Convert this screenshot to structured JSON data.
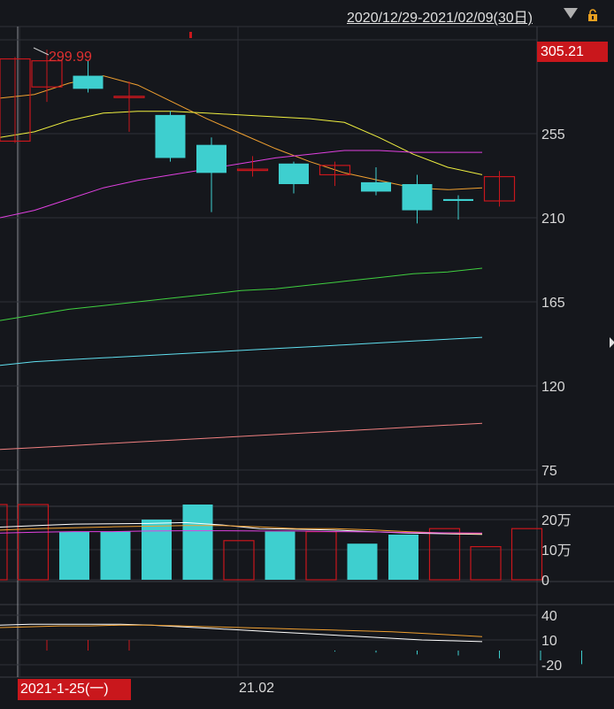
{
  "header": {
    "range": "2020/12/29-2021/02/09(30日)"
  },
  "icons": {
    "dropdown": "triangle-down-icon",
    "lock": "lock-icon",
    "expand": "triangle-right-icon"
  },
  "colors": {
    "up": "#c9171c",
    "down": "#3ecfcf",
    "grid": "#2e3138",
    "bg": "#15171c"
  },
  "chart_data": [
    {
      "type": "candlestick",
      "ylim": [
        65,
        320
      ],
      "y_ticks": [
        255,
        210,
        165,
        120,
        75
      ],
      "y_tick_labels": [
        "255",
        "210",
        "165",
        "120",
        "75"
      ],
      "last_price": "305.21",
      "max_label": "299.99",
      "x_tick_label": "21.02",
      "crosshair_date": "2021-1-25(一)",
      "candles": [
        {
          "open": 251,
          "close": 295,
          "high": 296,
          "low": 250,
          "dir": "up"
        },
        {
          "open": 280,
          "close": 294,
          "high": 300,
          "low": 272,
          "dir": "up"
        },
        {
          "open": 286,
          "close": 279,
          "high": 294,
          "low": 277,
          "dir": "down"
        },
        {
          "open": 275,
          "close": 275,
          "high": 283,
          "low": 256,
          "dir": "up"
        },
        {
          "open": 265,
          "close": 242,
          "high": 267,
          "low": 240,
          "dir": "down"
        },
        {
          "open": 249,
          "close": 234,
          "high": 253,
          "low": 213,
          "dir": "down"
        },
        {
          "open": 236,
          "close": 236,
          "high": 243,
          "low": 232,
          "dir": "up"
        },
        {
          "open": 239,
          "close": 228,
          "high": 240,
          "low": 223,
          "dir": "down"
        },
        {
          "open": 233,
          "close": 238,
          "high": 240,
          "low": 227,
          "dir": "up"
        },
        {
          "open": 229,
          "close": 224,
          "high": 237,
          "low": 222,
          "dir": "down"
        },
        {
          "open": 228,
          "close": 214,
          "high": 233,
          "low": 207,
          "dir": "down"
        },
        {
          "open": 220,
          "close": 219,
          "high": 222,
          "low": 209,
          "dir": "down"
        },
        {
          "open": 219,
          "close": 232,
          "high": 235,
          "low": 216,
          "dir": "up"
        }
      ],
      "ma": [
        {
          "color": "#f0a030",
          "values": [
            274,
            276,
            282,
            286,
            281,
            272,
            263,
            255,
            247,
            240,
            234,
            230,
            226,
            225,
            226
          ]
        },
        {
          "color": "#f0f040",
          "values": [
            253,
            256,
            262,
            266,
            267,
            267,
            266,
            265,
            264,
            263,
            261,
            253,
            244,
            237,
            233
          ]
        },
        {
          "color": "#e040e0",
          "values": [
            210,
            214,
            220,
            226,
            230,
            233,
            236,
            239,
            242,
            244,
            246,
            246,
            245,
            245,
            245
          ]
        },
        {
          "color": "#40d040",
          "values": [
            155,
            158,
            161,
            163,
            165,
            167,
            169,
            171,
            172,
            174,
            176,
            178,
            180,
            181,
            183
          ]
        },
        {
          "color": "#60e0f0",
          "values": [
            131,
            133,
            134,
            135,
            136,
            137,
            138,
            139,
            140,
            141,
            142,
            143,
            144,
            145,
            146
          ]
        },
        {
          "color": "#f08080",
          "values": [
            86,
            87,
            88,
            89,
            90,
            91,
            92,
            93,
            94,
            95,
            96,
            97,
            98,
            99,
            100
          ]
        }
      ]
    },
    {
      "type": "bar",
      "ylim": [
        0,
        23
      ],
      "y_ticks": [
        20,
        10,
        0
      ],
      "y_tick_labels": [
        "20万",
        "10万",
        "0"
      ],
      "values": [
        25,
        25,
        16,
        16,
        20,
        25,
        13,
        16,
        16,
        12,
        15,
        17,
        11,
        17
      ],
      "dir": [
        "up",
        "up",
        "down",
        "down",
        "down",
        "down",
        "up",
        "down",
        "up",
        "down",
        "down",
        "up",
        "up",
        "up"
      ],
      "ma": [
        {
          "color": "#ffffff",
          "values": [
            17.5,
            18,
            18.5,
            18.6,
            18.7,
            19,
            18.2,
            17,
            16.8,
            16.5,
            16,
            15.5,
            15.3,
            15.1
          ]
        },
        {
          "color": "#f0a030",
          "values": [
            16.5,
            17,
            17.3,
            17.6,
            17.8,
            18,
            18,
            17.6,
            17,
            17,
            16.6,
            16,
            15.5,
            15.3
          ]
        },
        {
          "color": "#e040e0",
          "values": [
            15.5,
            15.8,
            16,
            16,
            16.2,
            16.3,
            16.3,
            16.2,
            16.2,
            16,
            15.9,
            15.7,
            15.6,
            15.5
          ]
        }
      ]
    },
    {
      "type": "line",
      "ylim": [
        -30,
        50
      ],
      "y_ticks": [
        40,
        10,
        -20
      ],
      "y_tick_labels": [
        "40",
        "10",
        "-20"
      ],
      "lines": [
        {
          "color": "#ffffff",
          "values": [
            28,
            29,
            29,
            29,
            29,
            28,
            26,
            24,
            22,
            20,
            18,
            16,
            14,
            12,
            10,
            9,
            8
          ]
        },
        {
          "color": "#f0a030",
          "values": [
            25,
            26,
            27,
            27,
            28,
            28,
            27,
            26,
            25,
            24,
            23,
            22,
            21,
            20,
            18,
            16,
            14
          ]
        }
      ],
      "hist": [
        0,
        -3,
        -3,
        -4,
        0,
        0,
        0,
        0,
        1,
        2,
        4,
        5,
        8,
        10,
        14,
        18,
        20
      ]
    }
  ]
}
